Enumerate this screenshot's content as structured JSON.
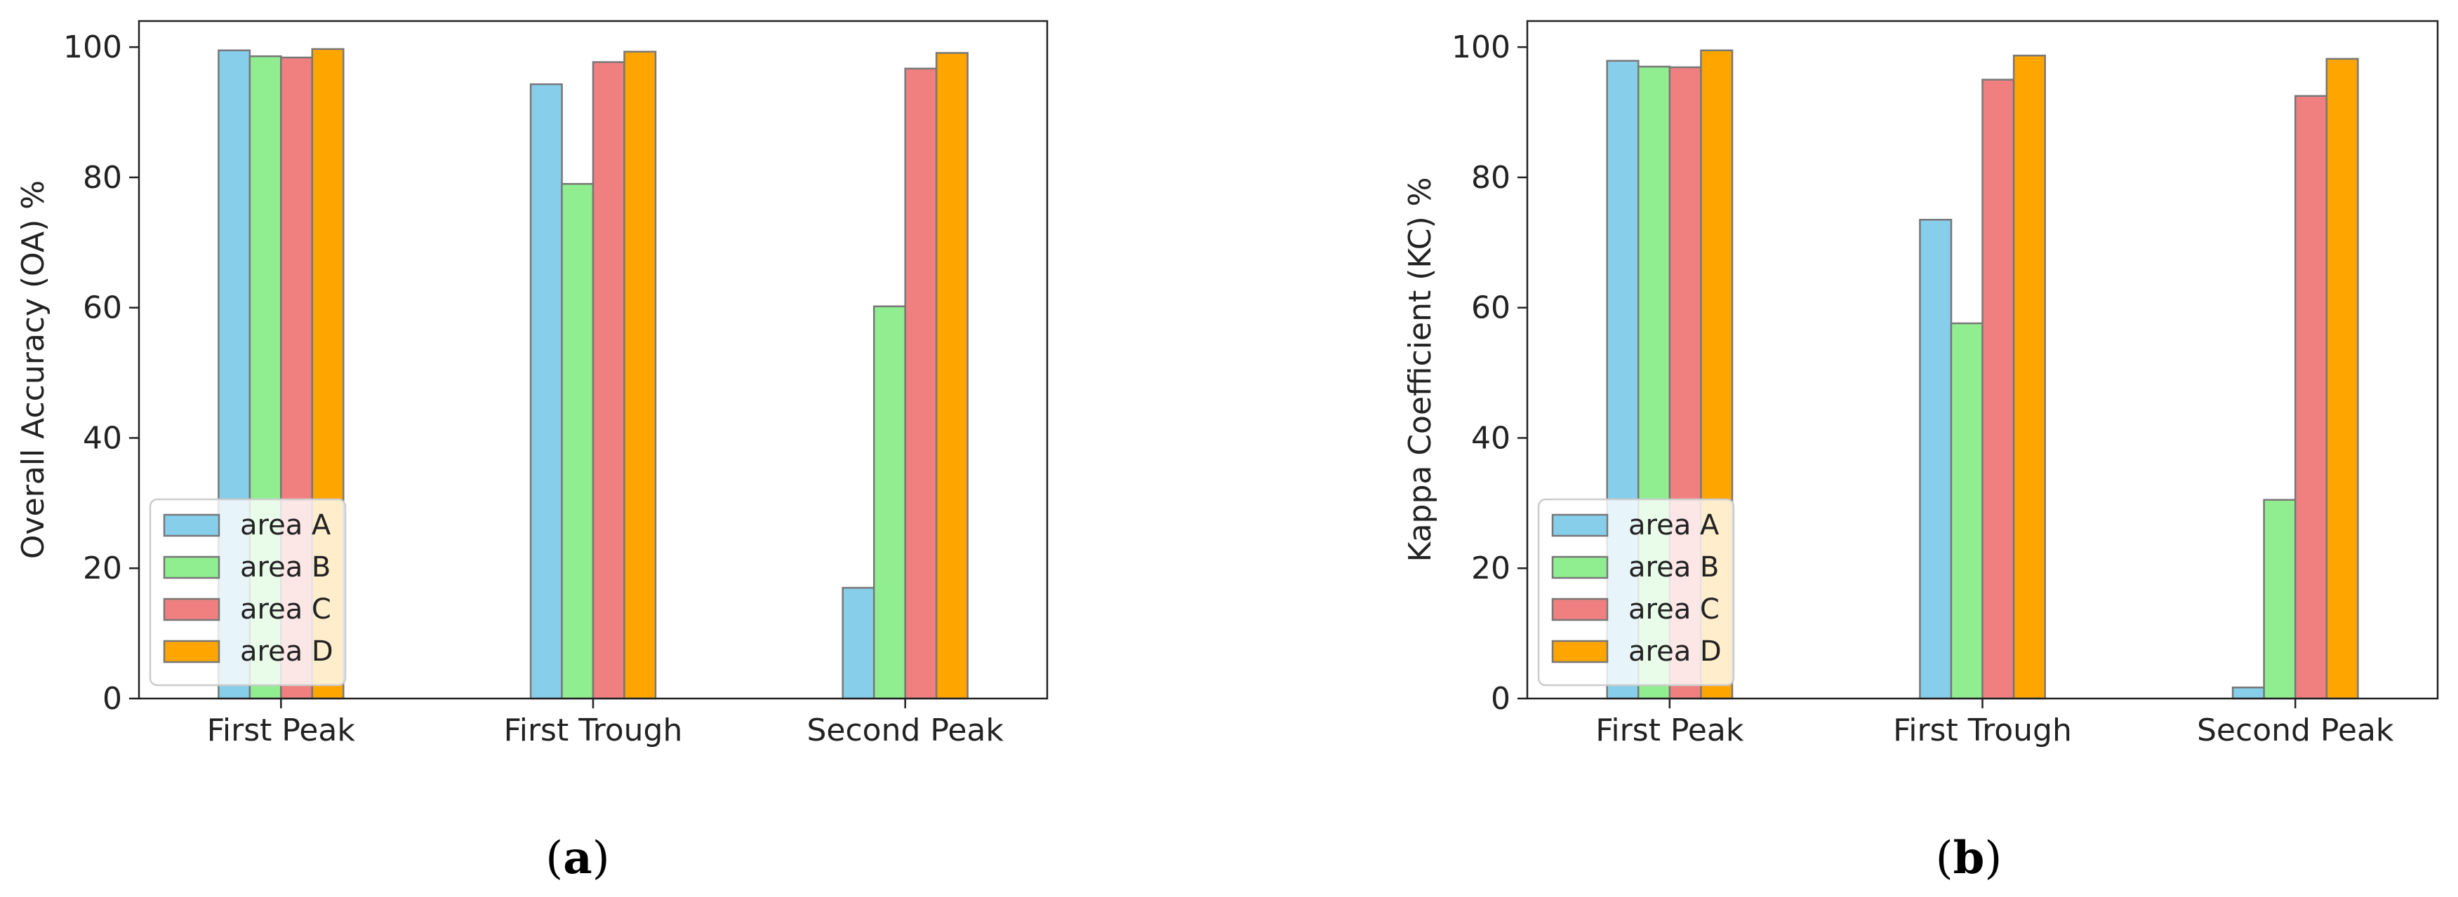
{
  "chart_data": [
    {
      "type": "bar",
      "panel_label": {
        "open": "(",
        "letter": "a",
        "close": ")"
      },
      "title": "",
      "xlabel": "",
      "ylabel": "Overall Accuracy (OA) %",
      "categories": [
        "First Peak",
        "First Trough",
        "Second Peak"
      ],
      "ylim": [
        0,
        104
      ],
      "yticks": [
        0,
        20,
        40,
        60,
        80,
        100
      ],
      "legend_position": "lower-left",
      "grid": false,
      "series": [
        {
          "name": "area A",
          "color": "#87CEEB",
          "values": [
            99.5,
            94.3,
            17.0
          ]
        },
        {
          "name": "area B",
          "color": "#90EE90",
          "values": [
            98.6,
            79.0,
            60.2
          ]
        },
        {
          "name": "area C",
          "color": "#F08080",
          "values": [
            98.4,
            97.7,
            96.7
          ]
        },
        {
          "name": "area D",
          "color": "#FFA500",
          "values": [
            99.7,
            99.3,
            99.1
          ]
        }
      ]
    },
    {
      "type": "bar",
      "panel_label": {
        "open": "(",
        "letter": "b",
        "close": ")"
      },
      "title": "",
      "xlabel": "",
      "ylabel": "Kappa Coefficient (KC) %",
      "categories": [
        "First Peak",
        "First Trough",
        "Second Peak"
      ],
      "ylim": [
        0,
        104
      ],
      "yticks": [
        0,
        20,
        40,
        60,
        80,
        100
      ],
      "legend_position": "lower-left",
      "grid": false,
      "series": [
        {
          "name": "area A",
          "color": "#87CEEB",
          "values": [
            97.9,
            73.5,
            1.7
          ]
        },
        {
          "name": "area B",
          "color": "#90EE90",
          "values": [
            97.0,
            57.6,
            30.5
          ]
        },
        {
          "name": "area C",
          "color": "#F08080",
          "values": [
            96.9,
            95.0,
            92.5
          ]
        },
        {
          "name": "area D",
          "color": "#FFA500",
          "values": [
            99.5,
            98.7,
            98.2
          ]
        }
      ]
    }
  ]
}
